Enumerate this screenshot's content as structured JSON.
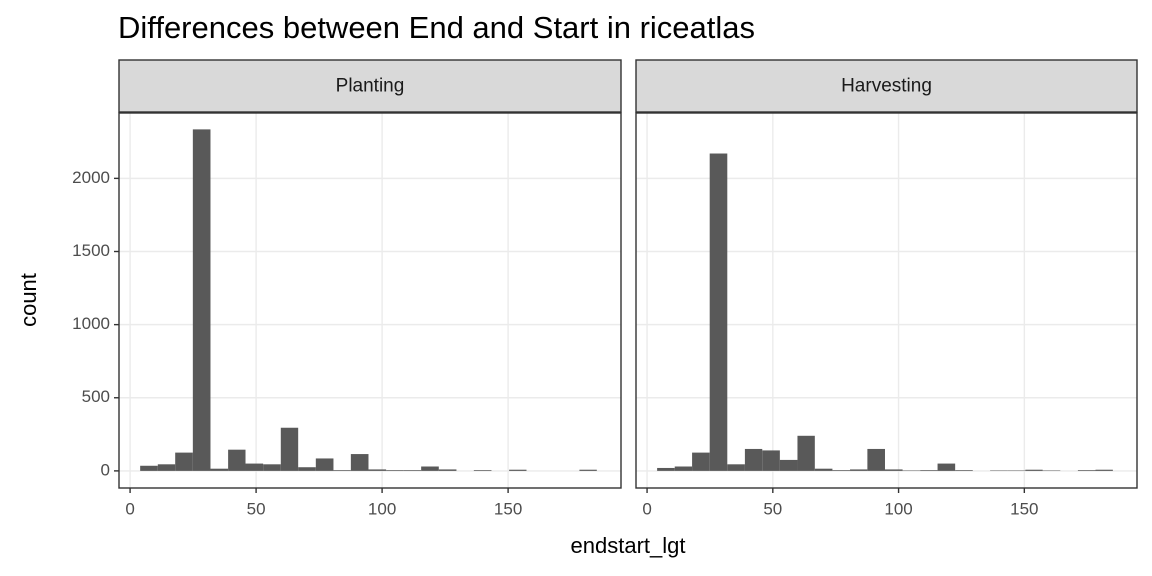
{
  "chart_data": {
    "type": "histogram",
    "title": "Differences between End and Start in riceatlas",
    "x_label": "endstart_lgt",
    "y_label": "count",
    "color": "#595959",
    "grid": true,
    "bins": [
      4.0,
      11.0,
      17.9,
      24.9,
      31.9,
      38.9,
      45.8,
      52.8,
      59.8,
      66.7,
      73.7,
      80.7,
      87.6,
      94.6,
      101.6,
      108.6,
      115.5,
      122.5,
      129.5,
      136.4,
      143.4,
      150.4,
      157.3,
      164.3,
      171.3,
      178.3,
      185.2
    ],
    "xlim": [
      -4.4,
      194.8
    ],
    "xticks": [
      0,
      50,
      100,
      150
    ],
    "ylim": [
      -117,
      2447
    ],
    "yticks": [
      0,
      500,
      1000,
      1500,
      2000
    ],
    "facets": [
      {
        "name": "Planting",
        "values": [
          35,
          45,
          125,
          2335,
          15,
          145,
          50,
          45,
          295,
          25,
          85,
          5,
          115,
          10,
          5,
          5,
          30,
          10,
          0,
          5,
          0,
          8,
          0,
          0,
          0,
          8
        ]
      },
      {
        "name": "Harvesting",
        "values": [
          20,
          30,
          125,
          2170,
          45,
          150,
          140,
          75,
          240,
          15,
          5,
          10,
          150,
          10,
          3,
          5,
          50,
          5,
          0,
          3,
          3,
          8,
          3,
          0,
          5,
          8
        ]
      }
    ]
  }
}
